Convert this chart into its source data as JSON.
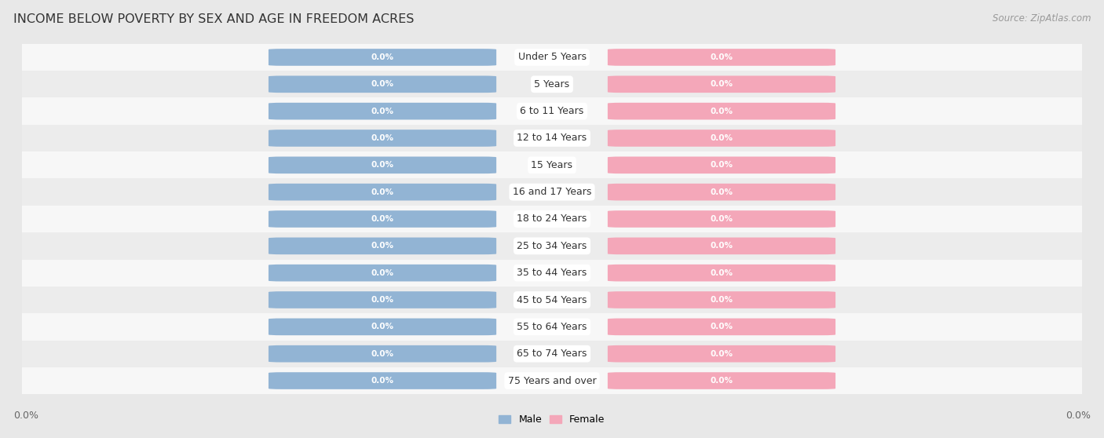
{
  "title": "INCOME BELOW POVERTY BY SEX AND AGE IN FREEDOM ACRES",
  "source": "Source: ZipAtlas.com",
  "categories": [
    "Under 5 Years",
    "5 Years",
    "6 to 11 Years",
    "12 to 14 Years",
    "15 Years",
    "16 and 17 Years",
    "18 to 24 Years",
    "25 to 34 Years",
    "35 to 44 Years",
    "45 to 54 Years",
    "55 to 64 Years",
    "65 to 74 Years",
    "75 Years and over"
  ],
  "male_values": [
    0.0,
    0.0,
    0.0,
    0.0,
    0.0,
    0.0,
    0.0,
    0.0,
    0.0,
    0.0,
    0.0,
    0.0,
    0.0
  ],
  "female_values": [
    0.0,
    0.0,
    0.0,
    0.0,
    0.0,
    0.0,
    0.0,
    0.0,
    0.0,
    0.0,
    0.0,
    0.0,
    0.0
  ],
  "male_color": "#92b4d4",
  "female_color": "#f4a7b9",
  "male_label": "Male",
  "female_label": "Female",
  "background_color": "#e8e8e8",
  "row_even_color": "#f5f5f5",
  "row_odd_color": "#e0e0e0",
  "title_fontsize": 11.5,
  "source_fontsize": 8.5,
  "tick_fontsize": 9,
  "value_fontsize": 7.5,
  "category_fontsize": 9,
  "legend_fontsize": 9,
  "bottom_label": "0.0%"
}
